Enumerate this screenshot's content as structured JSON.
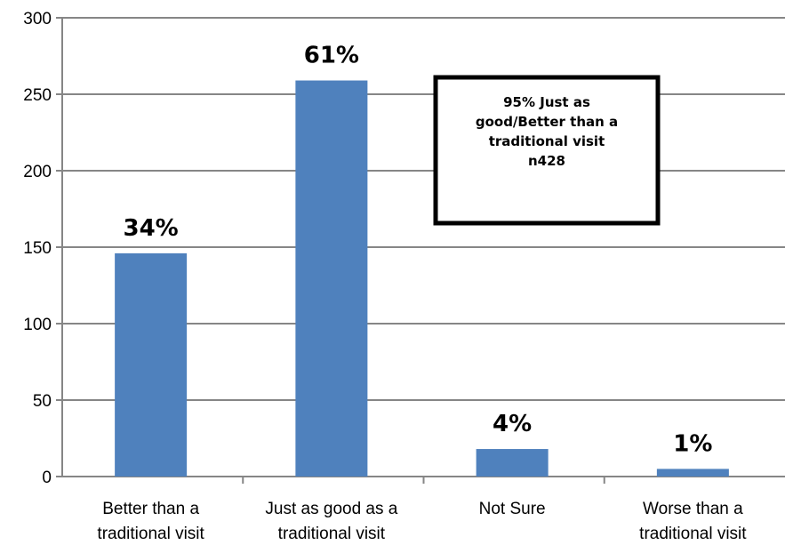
{
  "chart_data": {
    "type": "bar",
    "categories": [
      [
        "Better than a",
        "traditional visit"
      ],
      [
        "Just as good as a",
        "traditional visit"
      ],
      [
        "Not Sure"
      ],
      [
        "Worse than a",
        "traditional visit"
      ]
    ],
    "values": [
      146,
      259,
      18,
      5
    ],
    "data_labels": [
      "34%",
      "61%",
      "4%",
      "1%"
    ],
    "title": "",
    "xlabel": "",
    "ylabel": "",
    "ylim": [
      0,
      300
    ],
    "yticks": [
      0,
      50,
      100,
      150,
      200,
      250,
      300
    ],
    "grid": true,
    "bar_color": "#4f81bd",
    "annotation": [
      "95% Just as",
      "good/Better than a",
      "traditional visit",
      "n428"
    ]
  }
}
